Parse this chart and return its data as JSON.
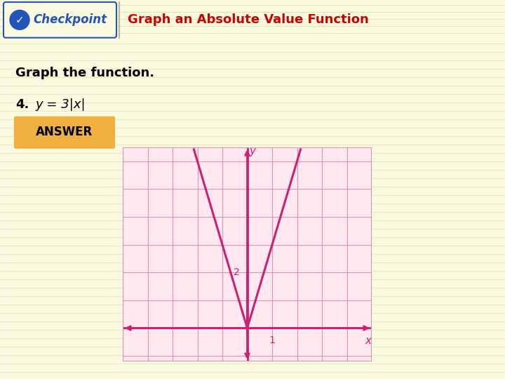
{
  "background_color": "#FAFAE0",
  "header_bg_color": "#EEEECC",
  "checkpoint_text": "Checkpoint",
  "checkpoint_color": "#2255BB",
  "checkpoint_badge_color": "#2255BB",
  "title_text": "Graph an Absolute Value Function",
  "title_color": "#CC0000",
  "body_text_1": "Graph the function.",
  "body_text_2_prefix": "4.",
  "equation_text": "y = 3|x|",
  "answer_text": "ANSWER",
  "answer_bg": "#F0B040",
  "graph_bg": "#FFE8F0",
  "grid_color": "#E090B0",
  "axis_color": "#CC2070",
  "curve_color": "#CC2070",
  "x_label": "x",
  "y_label": "y",
  "tick_label_x": "1",
  "tick_label_y": "2",
  "x_range": [
    -5,
    5
  ],
  "y_range": [
    -1.2,
    6.5
  ],
  "grid_x_ticks": [
    -5,
    -4,
    -3,
    -2,
    -1,
    0,
    1,
    2,
    3,
    4,
    5
  ],
  "grid_y_ticks": [
    -1,
    0,
    1,
    2,
    3,
    4,
    5,
    6
  ]
}
